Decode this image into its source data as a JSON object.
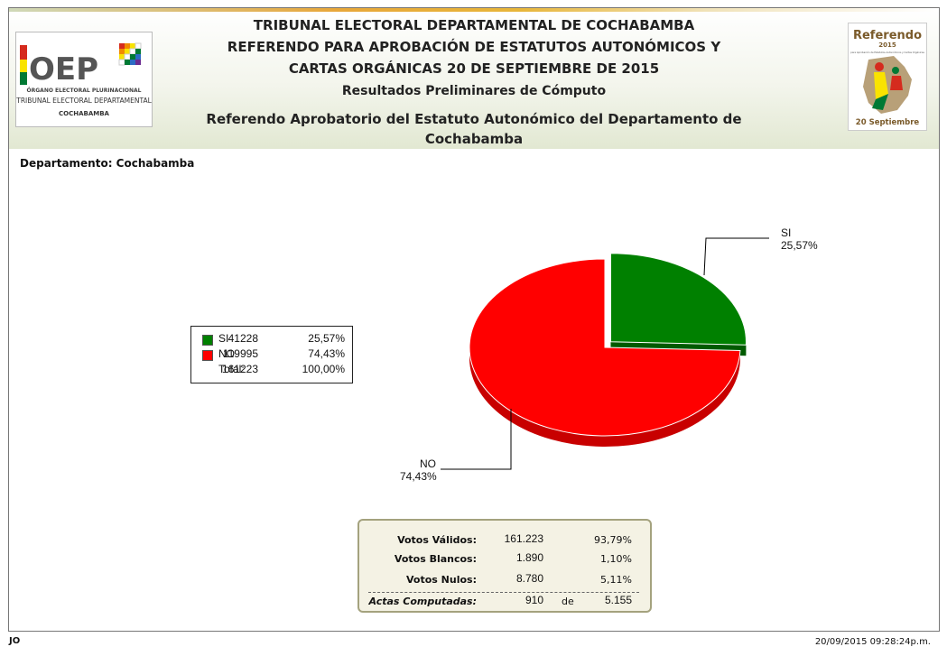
{
  "header": {
    "line1": "TRIBUNAL ELECTORAL DEPARTAMENTAL DE COCHABAMBA",
    "line2": "REFERENDO PARA APROBACIÓN DE ESTATUTOS AUTONÓMICOS Y",
    "line3": "CARTAS ORGÁNICAS 20  DE SEPTIEMBRE  DE 2015",
    "line4": "Resultados Preliminares de Cómputo",
    "line5a": "Referendo Aprobatorio del Estatuto Autonómico del Departamento de",
    "line5b": "Cochabamba"
  },
  "logo_left": {
    "mark": "OEP",
    "org": "ÓRGANO ELECTORAL PLURINACIONAL",
    "tribunal": "TRIBUNAL ELECTORAL DEPARTAMENTAL",
    "dept": "COCHABAMBA",
    "colors": [
      "#d52b1e",
      "#f9e300",
      "#007934"
    ]
  },
  "logo_right": {
    "word": "Referendo",
    "year": "2015",
    "sub": "para Aprobación de Estatutos Autonómicos y Cartas Orgánicas",
    "date": "20 Septiembre"
  },
  "department_label": "Departamento: Cochabamba",
  "chart_data": {
    "type": "pie",
    "title": "",
    "slices": [
      {
        "name": "SI",
        "value": 41228,
        "percent_label": "25,57%",
        "color": "#008000",
        "dark": "#005a00"
      },
      {
        "name": "NO",
        "value": 119995,
        "percent_label": "74,43%",
        "color": "#ff0000",
        "dark": "#c80000"
      }
    ],
    "total": {
      "label": "Total:",
      "value": 161223,
      "percent_label": "100,00%"
    },
    "legend_position": "left",
    "exploded": "SI",
    "three_d": true
  },
  "stats": {
    "validos": {
      "label": "Votos Válidos:",
      "value": "161.223",
      "percent": "93,79%"
    },
    "blancos": {
      "label": "Votos Blancos:",
      "value": "1.890",
      "percent": "1,10%"
    },
    "nulos": {
      "label": "Votos Nulos:",
      "value": "8.780",
      "percent": "5,11%"
    },
    "actas": {
      "label": "Actas Computadas:",
      "value": "910",
      "de": "de",
      "total": "5.155"
    }
  },
  "footer": {
    "left": "JO",
    "timestamp": "20/09/2015 09:28:24p.m."
  }
}
